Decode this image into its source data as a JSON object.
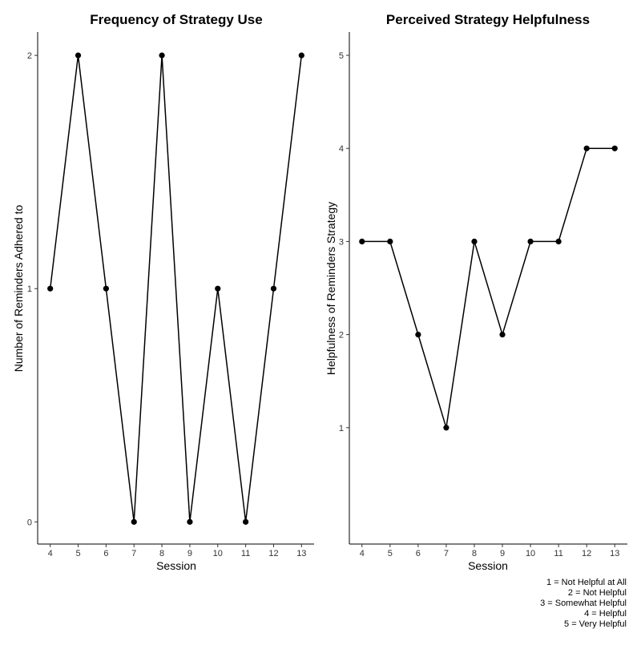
{
  "chart_data": [
    {
      "type": "line",
      "title": "Frequency of Strategy Use",
      "xlabel": "Session",
      "ylabel": "Number of Reminders Adhered to",
      "x": [
        4,
        5,
        6,
        7,
        8,
        9,
        10,
        11,
        12,
        13
      ],
      "series": [
        {
          "values": [
            1,
            2,
            1,
            0,
            2,
            0,
            1,
            0,
            1,
            2
          ]
        }
      ],
      "xticks": [
        4,
        5,
        6,
        7,
        8,
        9,
        10,
        11,
        12,
        13
      ],
      "yticks": [
        0,
        1,
        2
      ],
      "xlim": [
        3.55,
        13.45
      ],
      "ylim": [
        -0.095,
        2.1
      ],
      "grid": false
    },
    {
      "type": "line",
      "title": "Perceived Strategy Helpfulness",
      "xlabel": "Session",
      "ylabel": "Helpfulness of Reminders Strategy",
      "x": [
        4,
        5,
        6,
        7,
        8,
        9,
        10,
        11,
        12,
        13
      ],
      "series": [
        {
          "values": [
            3,
            3,
            2,
            1,
            3,
            2,
            3,
            3,
            4,
            4
          ]
        }
      ],
      "xticks": [
        4,
        5,
        6,
        7,
        8,
        9,
        10,
        11,
        12,
        13
      ],
      "yticks": [
        1,
        2,
        3,
        4,
        5
      ],
      "xlim": [
        3.55,
        13.45
      ],
      "ylim": [
        -0.25,
        5.25
      ],
      "grid": false
    }
  ],
  "caption": {
    "lines": [
      "1 = Not Helpful at All",
      "2 = Not Helpful",
      "3 = Somewhat Helpful",
      "4 = Helpful",
      "5 = Very Helpful"
    ]
  }
}
